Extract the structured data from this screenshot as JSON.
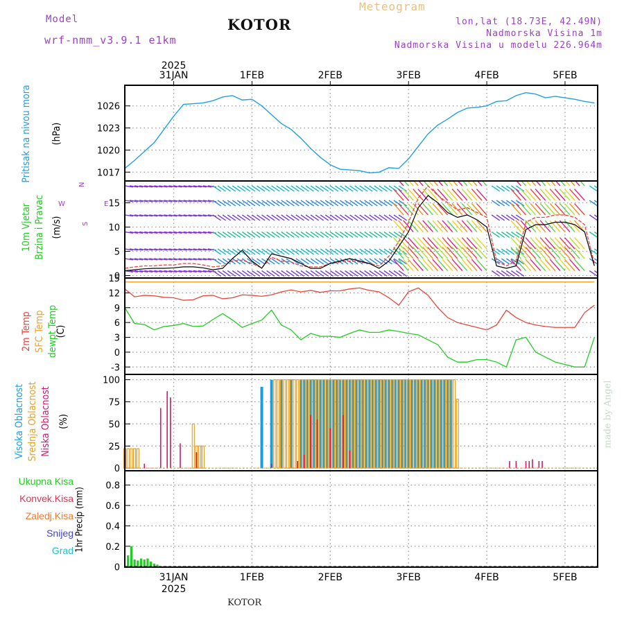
{
  "header": {
    "model_label": "Model",
    "model_name": "wrf-nmm_v3.9.1 e1km",
    "location": "KOTOR",
    "product": "Meteogram",
    "coords": "lon,lat (18.73E, 42.49N)",
    "altitude": "Nadmorska Visina 1m",
    "model_altitude": "Nadmorska Visina u modelu 226.964m"
  },
  "footer": {
    "location": "KOTOR",
    "credit": "made by Angel"
  },
  "colors": {
    "pressure": "#1fa0e0",
    "temp2m": "#e8453c",
    "sfc": "#f0a030",
    "dewpt": "#22cc22",
    "high_cloud": "#1a9ee0",
    "mid_cloud": "#e8a020",
    "low_cloud": "#d01870",
    "precip": "#22cc22",
    "wind_speed": "#000000",
    "gust": "#e8453c",
    "header_purple": "#9b40c8"
  },
  "time_axis": {
    "top_year": "2025",
    "bottom_year": "2025",
    "day_labels": [
      "31JAN",
      "1FEB",
      "2FEB",
      "3FEB",
      "4FEB",
      "5FEB"
    ],
    "start_hour_offset": -15,
    "end_hour": 130
  },
  "chart_data": [
    {
      "type": "line",
      "panel": "pressure",
      "ylabel_left": "Pritisak na nivou mora",
      "ylabel": "(hPa)",
      "yticks": [
        1017,
        1020,
        1023,
        1026
      ],
      "ylim": [
        1015.8,
        1028.8
      ],
      "grid": true,
      "x": [
        -15,
        -12,
        -9,
        -6,
        -3,
        0,
        3,
        6,
        9,
        12,
        15,
        18,
        21,
        24,
        27,
        30,
        33,
        36,
        39,
        42,
        45,
        48,
        51,
        54,
        57,
        60,
        63,
        66,
        69,
        72,
        75,
        78,
        81,
        84,
        87,
        90,
        93,
        96,
        99,
        102,
        105,
        108,
        111,
        114,
        117,
        120,
        123,
        126,
        129
      ],
      "series": [
        {
          "values": [
            1017.5,
            1018.6,
            1019.8,
            1021.0,
            1022.8,
            1024.6,
            1026.2,
            1026.3,
            1026.4,
            1026.7,
            1027.2,
            1027.4,
            1026.8,
            1026.9,
            1026.0,
            1024.8,
            1023.6,
            1022.8,
            1021.6,
            1020.2,
            1019.0,
            1018.0,
            1017.4,
            1017.3,
            1017.2,
            1016.9,
            1017.0,
            1017.6,
            1017.5,
            1018.8,
            1020.5,
            1022.2,
            1023.4,
            1024.2,
            1025.1,
            1025.7,
            1025.8,
            1026.0,
            1026.6,
            1026.7,
            1027.4,
            1027.8,
            1027.6,
            1027.1,
            1027.3,
            1027.1,
            1026.9,
            1026.6,
            1026.4
          ]
        }
      ]
    },
    {
      "type": "line",
      "panel": "wind",
      "ylabel_left_1": "10m Vjetar",
      "ylabel_left_2": "Brzina i Pravac",
      "ylabel": "(m/s)",
      "compass": [
        "N",
        "E",
        "S",
        "W"
      ],
      "yticks": [
        0,
        5,
        10,
        15
      ],
      "ylim": [
        -0.5,
        19.5
      ],
      "grid": true,
      "x": [
        -15,
        -12,
        -9,
        -6,
        -3,
        0,
        3,
        6,
        9,
        12,
        15,
        18,
        21,
        24,
        27,
        30,
        33,
        36,
        39,
        42,
        45,
        48,
        51,
        54,
        57,
        60,
        63,
        66,
        69,
        72,
        75,
        78,
        81,
        84,
        87,
        90,
        93,
        96,
        99,
        102,
        105,
        108,
        111,
        114,
        117,
        120,
        123,
        126,
        129
      ],
      "series": [
        {
          "name": "speed",
          "values": [
            1.0,
            1.2,
            1.4,
            1.5,
            1.5,
            1.6,
            1.8,
            1.8,
            1.6,
            1.2,
            1.5,
            3.5,
            5.2,
            3.0,
            1.5,
            4.5,
            4.0,
            3.5,
            2.5,
            1.5,
            1.5,
            2.5,
            3.0,
            3.5,
            3.0,
            2.5,
            1.5,
            3.0,
            6.0,
            9.0,
            14.0,
            16.5,
            15.0,
            13.0,
            12.0,
            12.5,
            11.5,
            10.0,
            2.0,
            1.5,
            2.0,
            9.5,
            10.5,
            10.5,
            11.0,
            11.0,
            10.5,
            9.0,
            2.0
          ]
        },
        {
          "name": "gust",
          "values": [
            1.5,
            1.8,
            2.0,
            2.0,
            2.2,
            2.2,
            2.5,
            2.5,
            2.2,
            1.8,
            2.0,
            3.0,
            3.2,
            2.5,
            1.6,
            3.8,
            3.0,
            2.8,
            2.0,
            1.8,
            1.8,
            2.5,
            2.8,
            3.0,
            2.8,
            2.5,
            2.0,
            4.0,
            7.0,
            11.0,
            16.0,
            18.5,
            16.5,
            15.0,
            13.5,
            14.0,
            13.0,
            12.0,
            3.0,
            2.0,
            3.0,
            11.0,
            12.0,
            12.0,
            12.5,
            12.5,
            12.0,
            10.5,
            2.5
          ]
        }
      ]
    },
    {
      "type": "line",
      "panel": "temperature",
      "ylabel_left_1": "2m Temp",
      "ylabel_left_2": "SFC Temp",
      "ylabel_left_3": "dewpt Temp",
      "ylabel": "(C)",
      "yticks": [
        -3,
        0,
        3,
        6,
        9,
        12,
        15
      ],
      "ylim": [
        -4.5,
        15.0
      ],
      "grid": true,
      "x": [
        -15,
        -12,
        -9,
        -6,
        -3,
        0,
        3,
        6,
        9,
        12,
        15,
        18,
        21,
        24,
        27,
        30,
        33,
        36,
        39,
        42,
        45,
        48,
        51,
        54,
        57,
        60,
        63,
        66,
        69,
        72,
        75,
        78,
        81,
        84,
        87,
        90,
        93,
        96,
        99,
        102,
        105,
        108,
        111,
        114,
        117,
        120,
        123,
        126,
        129
      ],
      "series": [
        {
          "name": "2m Temp",
          "values": [
            12.8,
            11.2,
            11.5,
            11.4,
            11.1,
            11.0,
            10.5,
            10.6,
            11.4,
            11.5,
            10.8,
            11.0,
            11.6,
            11.5,
            11.3,
            11.6,
            12.2,
            12.6,
            12.2,
            12.5,
            12.1,
            12.4,
            12.4,
            12.8,
            13.0,
            12.5,
            12.2,
            11.0,
            9.5,
            12.2,
            13.0,
            11.5,
            9.0,
            7.0,
            6.0,
            5.5,
            5.0,
            4.5,
            5.5,
            8.5,
            7.0,
            6.0,
            5.5,
            5.2,
            5.0,
            5.0,
            5.0,
            8.0,
            9.5
          ]
        },
        {
          "name": "SFC Temp",
          "values": [
            14.2,
            14.2,
            14.2,
            14.2,
            14.2,
            14.2,
            14.2,
            14.2,
            14.2,
            14.2,
            14.2,
            14.2,
            14.2,
            14.2,
            14.2,
            14.2,
            14.2,
            14.2,
            14.2,
            14.2,
            14.2,
            14.2,
            14.2,
            14.2,
            14.2,
            14.2,
            14.2,
            14.2,
            14.2,
            14.2,
            14.2,
            14.2,
            14.2,
            14.2,
            14.2,
            14.2,
            14.2,
            14.2,
            14.2,
            14.2,
            14.2,
            14.2,
            14.2,
            14.2,
            14.2,
            14.2,
            14.2,
            14.2,
            14.2
          ]
        },
        {
          "name": "dewpt Temp",
          "values": [
            9.0,
            5.8,
            5.6,
            4.5,
            5.2,
            5.4,
            5.8,
            5.2,
            5.3,
            6.6,
            7.8,
            6.5,
            5.0,
            5.8,
            6.5,
            8.5,
            5.5,
            4.5,
            2.5,
            3.8,
            3.2,
            3.2,
            3.0,
            3.8,
            4.5,
            4.0,
            4.0,
            4.5,
            4.2,
            3.8,
            3.5,
            2.5,
            1.5,
            -1.0,
            -2.0,
            -2.0,
            -1.5,
            -1.5,
            -2.0,
            -3.0,
            2.5,
            3.0,
            0.0,
            -1.0,
            -2.0,
            -2.5,
            -3.0,
            -3.0,
            3.0
          ]
        }
      ]
    },
    {
      "type": "bar",
      "panel": "clouds",
      "ylabel_left_1": "Visoka Oblacnost",
      "ylabel_left_2": "Srednja Oblacnost",
      "ylabel_left_3": "Niska Oblacnost",
      "ylabel": "(%)",
      "yticks": [
        0,
        25,
        50,
        75,
        100
      ],
      "ylim": [
        -3,
        106
      ],
      "grid": true,
      "series": [
        {
          "name": "Visoka Oblacnost",
          "x": [
            -15,
            -12,
            -9,
            -6,
            -3,
            0,
            3,
            6,
            9,
            12,
            15,
            18,
            21,
            24,
            27,
            30,
            33,
            36,
            39,
            40,
            41,
            42,
            43,
            44,
            45,
            46,
            47,
            48,
            49,
            50,
            51,
            52,
            53,
            54,
            55,
            56,
            57,
            58,
            59,
            60,
            61,
            62,
            63,
            64,
            65,
            66,
            67,
            68,
            69,
            70,
            71,
            72,
            73,
            74,
            75,
            76,
            77,
            78,
            79,
            80,
            81,
            82,
            83,
            84,
            85
          ],
          "values": [
            0,
            0,
            0,
            0,
            0,
            0,
            0,
            0,
            0,
            0,
            0,
            0,
            0,
            0,
            92,
            100,
            100,
            100,
            100,
            100,
            100,
            100,
            100,
            100,
            100,
            100,
            100,
            100,
            100,
            100,
            100,
            100,
            100,
            100,
            100,
            100,
            100,
            100,
            100,
            100,
            100,
            100,
            100,
            100,
            100,
            100,
            100,
            100,
            100,
            100,
            100,
            100,
            100,
            100,
            100,
            100,
            100,
            100,
            100,
            100,
            100,
            100,
            100,
            100,
            100
          ]
        },
        {
          "name": "Srednja Oblacnost",
          "x": [
            -15,
            -14,
            -13,
            -12,
            -11,
            6,
            7,
            8,
            9,
            31,
            32,
            33,
            34,
            35,
            36,
            37,
            38,
            39,
            40,
            41,
            42,
            43,
            44,
            45,
            46,
            47,
            48,
            49,
            50,
            51,
            52,
            53,
            54,
            55,
            56,
            57,
            58,
            59,
            60,
            61,
            62,
            63,
            64,
            65,
            66,
            67,
            68,
            69,
            70,
            71,
            72,
            73,
            74,
            75,
            76,
            77,
            78,
            79,
            80,
            81,
            82,
            83,
            84,
            85,
            86,
            87
          ],
          "values": [
            22,
            22,
            22,
            22,
            22,
            50,
            25,
            25,
            25,
            100,
            100,
            100,
            100,
            100,
            100,
            100,
            100,
            100,
            100,
            100,
            100,
            100,
            100,
            100,
            100,
            100,
            100,
            100,
            100,
            100,
            100,
            100,
            100,
            100,
            100,
            100,
            100,
            100,
            100,
            100,
            100,
            100,
            100,
            100,
            100,
            100,
            100,
            100,
            100,
            100,
            100,
            100,
            100,
            100,
            100,
            100,
            100,
            100,
            100,
            100,
            100,
            100,
            100,
            100,
            100,
            78
          ]
        },
        {
          "name": "Niska Oblacnost",
          "x": [
            -9,
            -4,
            -2,
            -1,
            2,
            7,
            30,
            38,
            40,
            42,
            44,
            48,
            52,
            54,
            103,
            105,
            108,
            109,
            110,
            112,
            113
          ],
          "values": [
            5,
            68,
            87,
            80,
            28,
            18,
            5,
            8,
            15,
            60,
            55,
            45,
            60,
            20,
            8,
            8,
            8,
            8,
            10,
            8,
            8
          ]
        }
      ]
    },
    {
      "type": "bar",
      "panel": "precipitation",
      "legend": [
        "Ukupna Kisa",
        "Konvek.Kisa",
        "Zaledj.Kisa",
        "Snijeg",
        "Grad"
      ],
      "ylabel": "1hr Precip (mm)",
      "yticks": [
        0,
        0.2,
        0.4,
        0.6,
        0.8
      ],
      "ylim": [
        -0.005,
        0.94
      ],
      "grid": true,
      "x": [
        -14,
        -13,
        -12,
        -11,
        -10,
        -9,
        -8,
        -7,
        -6,
        -5
      ],
      "values": [
        0.11,
        0.2,
        0.07,
        0.06,
        0.08,
        0.07,
        0.08,
        0.05,
        0.03,
        0.02
      ]
    }
  ]
}
